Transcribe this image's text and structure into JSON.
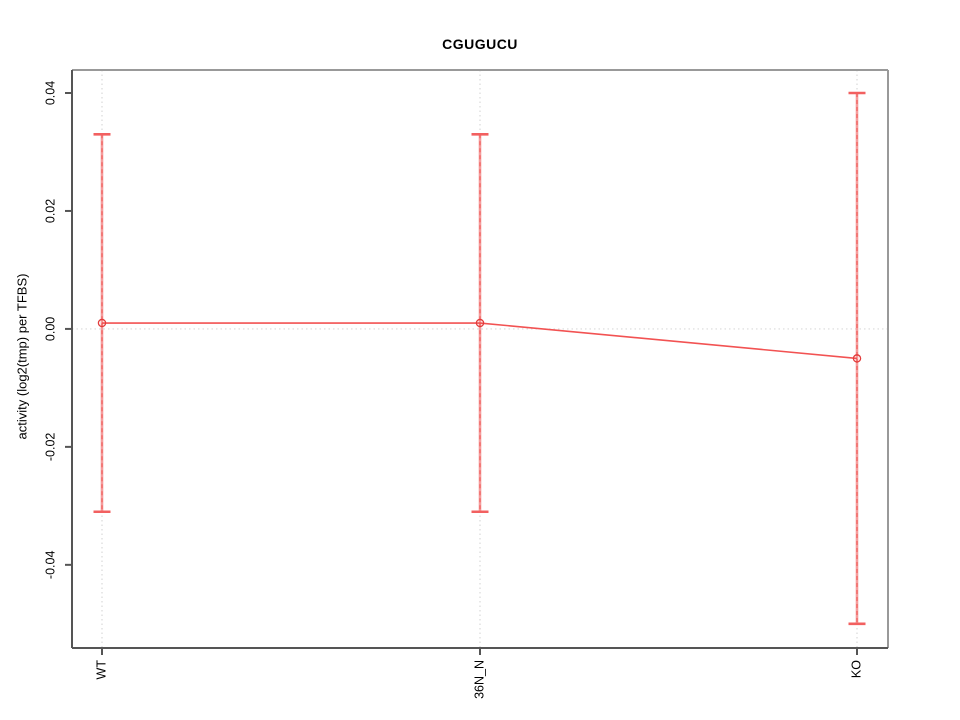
{
  "page": {
    "background": "#ffffff"
  },
  "chart_data": {
    "type": "line",
    "title": "CGUGUCU",
    "xlabel": "",
    "ylabel": "activity (log2(tmp) per TFBS)",
    "categories": [
      "WT",
      "36N_N",
      "KO"
    ],
    "series": [
      {
        "name": "activity",
        "values": [
          0.001,
          0.001,
          -0.005
        ],
        "ci_upper": [
          0.033,
          0.033,
          0.04
        ],
        "ci_lower": [
          -0.031,
          -0.031,
          -0.05
        ]
      }
    ],
    "ylim": [
      -0.0541,
      0.0439
    ],
    "yticks": [
      -0.04,
      -0.02,
      0,
      0.02,
      0.04
    ],
    "ytick_labels": [
      "-0.04",
      "-0.02",
      "0.00",
      "0.02",
      "0.04"
    ],
    "grid": true,
    "zero_line": true,
    "legend": "none",
    "colors": {
      "point": "#e23b3b",
      "line": "#f25252",
      "errorbar": "#f59c9c",
      "errorbar_dash": "#ef5350",
      "cap": "#f26060",
      "grid": "#d9d9d9",
      "box": "#999999",
      "axis": "#555555",
      "text": "#000000"
    }
  }
}
